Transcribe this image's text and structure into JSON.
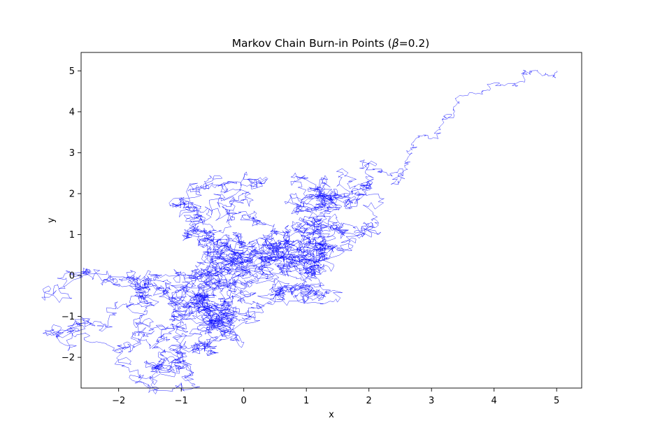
{
  "chart_data": {
    "type": "line",
    "title": "Markov Chain Burn-in Points (β=0.2)",
    "title_parts": {
      "prefix": "Markov Chain Burn-in Points (",
      "symbol": "β",
      "suffix": "=0.2)"
    },
    "xlabel": "x",
    "ylabel": "y",
    "xlim": [
      -2.6,
      5.4
    ],
    "ylim": [
      -2.75,
      5.45
    ],
    "xticks": [
      -2,
      -1,
      0,
      1,
      2,
      3,
      4,
      5
    ],
    "yticks": [
      -2,
      -1,
      0,
      1,
      2,
      3,
      4,
      5
    ],
    "grid": false,
    "legend": "none",
    "series": [
      {
        "color": "#0000ff",
        "random_walk_segments": [
          {
            "from": [
              5.0,
              5.0
            ],
            "to": [
              4.5,
              5.0
            ],
            "steps": 40,
            "sigma": 0.03
          },
          {
            "from": [
              4.5,
              5.0
            ],
            "to": [
              3.2,
              3.9
            ],
            "steps": 80,
            "sigma": 0.035
          },
          {
            "from": [
              3.2,
              3.9
            ],
            "to": [
              2.5,
              2.5
            ],
            "steps": 80,
            "sigma": 0.035
          },
          {
            "from": [
              2.5,
              2.5
            ],
            "to": [
              1.8,
              1.2
            ],
            "steps": 200,
            "sigma": 0.06
          },
          {
            "from": [
              1.8,
              1.2
            ],
            "to": [
              1.5,
              2.2
            ],
            "steps": 250,
            "sigma": 0.06
          },
          {
            "from": [
              1.5,
              2.2
            ],
            "to": [
              1.2,
              0.3
            ],
            "steps": 250,
            "sigma": 0.06
          },
          {
            "from": [
              1.2,
              0.3
            ],
            "to": [
              0.1,
              0.1
            ],
            "steps": 300,
            "sigma": 0.06
          },
          {
            "from": [
              0.1,
              0.1
            ],
            "to": [
              -0.3,
              1.9
            ],
            "steps": 300,
            "sigma": 0.06
          },
          {
            "from": [
              -0.3,
              1.9
            ],
            "to": [
              -0.9,
              1.4
            ],
            "steps": 200,
            "sigma": 0.06
          },
          {
            "from": [
              -0.9,
              1.4
            ],
            "to": [
              -0.5,
              0.2
            ],
            "steps": 250,
            "sigma": 0.06
          },
          {
            "from": [
              -0.5,
              0.2
            ],
            "to": [
              -1.2,
              -0.5
            ],
            "steps": 300,
            "sigma": 0.065
          },
          {
            "from": [
              -1.2,
              -0.5
            ],
            "to": [
              -2.2,
              -1.2
            ],
            "steps": 250,
            "sigma": 0.06
          },
          {
            "from": [
              -2.2,
              -1.2
            ],
            "to": [
              -1.3,
              -2.2
            ],
            "steps": 250,
            "sigma": 0.06
          },
          {
            "from": [
              -1.3,
              -2.2
            ],
            "to": [
              -0.4,
              -1.2
            ],
            "steps": 250,
            "sigma": 0.06
          },
          {
            "from": [
              -0.4,
              -1.2
            ],
            "to": [
              0.5,
              -0.5
            ],
            "steps": 250,
            "sigma": 0.06
          },
          {
            "from": [
              0.5,
              -0.5
            ],
            "to": [
              1.0,
              0.1
            ],
            "steps": 250,
            "sigma": 0.06
          },
          {
            "from": [
              1.0,
              0.1
            ],
            "to": [
              0.0,
              0.3
            ],
            "steps": 250,
            "sigma": 0.06
          },
          {
            "from": [
              0.0,
              0.3
            ],
            "to": [
              -1.0,
              -1.0
            ],
            "steps": 300,
            "sigma": 0.065
          },
          {
            "from": [
              -1.0,
              -1.0
            ],
            "to": [
              -0.3,
              0.8
            ],
            "steps": 250,
            "sigma": 0.06
          },
          {
            "from": [
              -0.3,
              0.8
            ],
            "to": [
              -1.8,
              -0.5
            ],
            "steps": 300,
            "sigma": 0.065
          },
          {
            "from": [
              -1.8,
              -0.5
            ],
            "to": [
              -0.8,
              -1.8
            ],
            "steps": 250,
            "sigma": 0.06
          },
          {
            "from": [
              -0.8,
              -1.8
            ],
            "to": [
              0.2,
              -0.2
            ],
            "steps": 300,
            "sigma": 0.065
          },
          {
            "from": [
              0.2,
              -0.2
            ],
            "to": [
              1.5,
              1.3
            ],
            "steps": 300,
            "sigma": 0.065
          },
          {
            "from": [
              1.5,
              1.3
            ],
            "to": [
              2.1,
              1.1
            ],
            "steps": 200,
            "sigma": 0.06
          },
          {
            "from": [
              2.1,
              1.1
            ],
            "to": [
              1.0,
              1.6
            ],
            "steps": 200,
            "sigma": 0.06
          },
          {
            "from": [
              1.0,
              1.6
            ],
            "to": [
              0.3,
              0.6
            ],
            "steps": 250,
            "sigma": 0.06
          },
          {
            "from": [
              0.3,
              0.6
            ],
            "to": [
              -0.6,
              1.5
            ],
            "steps": 200,
            "sigma": 0.06
          },
          {
            "from": [
              -0.6,
              1.5
            ],
            "to": [
              -0.8,
              0.0
            ],
            "steps": 250,
            "sigma": 0.06
          },
          {
            "from": [
              -0.8,
              0.0
            ],
            "to": [
              -1.6,
              -1.5
            ],
            "steps": 250,
            "sigma": 0.06
          },
          {
            "from": [
              -1.6,
              -1.5
            ],
            "to": [
              -0.5,
              -0.5
            ],
            "steps": 250,
            "sigma": 0.06
          }
        ]
      }
    ]
  }
}
